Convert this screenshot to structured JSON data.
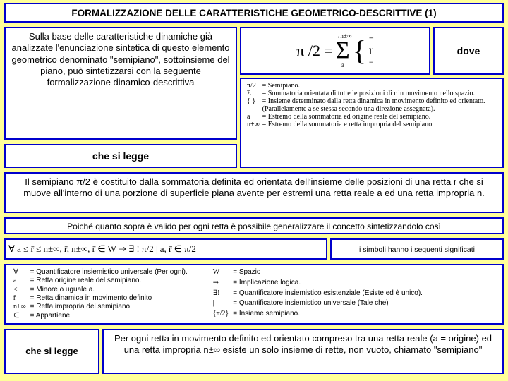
{
  "colors": {
    "border": "#0000cc",
    "bg_page": "#ffff99",
    "bg_box": "#ffffff"
  },
  "title": "FORMALIZZAZIONE DELLE CARATTERISTICHE GEOMETRICO-DESCRITTIVE (1)",
  "intro": "Sulla base delle caratteristiche dinamiche già analizzate l'enunciazione sintetica di questo elemento geometrico denominato \"semipiano\", sottoinsieme del piano, può sintetizzarsi con la seguente formalizzazione dinamico-descrittiva",
  "formula": {
    "left": "π /2 =",
    "sum_top": "→n±∞",
    "sum_bot": "a",
    "brace_top": "=",
    "r": "r",
    "brace_bot": "−"
  },
  "dove": "dove",
  "defs1": [
    {
      "s": "π/2",
      "t": "= Semipiano."
    },
    {
      "s": "Σ",
      "t": "= Sommatoria orientata di tutte le posizioni di r in movimento nello spazio."
    },
    {
      "s": "{ }",
      "t": "= Insieme determinato dalla retta dinamica in movimento definito ed orientato. (Parallelamente a se stessa secondo una direzione assegnata)."
    },
    {
      "s": "a",
      "t": "= Estremo della sommatoria ed origine reale del semipiano."
    },
    {
      "s": "n±∞",
      "t": "= Estremo della sommatoria e retta impropria del semipiano"
    }
  ],
  "chelegge": "che si legge",
  "para1": "Il semipiano π/2 è costituito dalla sommatoria definita ed orientata dell'insieme delle posizioni di una retta r che si muove all'interno di una porzione di superficie piana avente per estremi una retta reale a ed una retta impropria n.",
  "para2": "Poiché quanto sopra è valido per ogni retta è possibile generalizzare il concetto sintetizzandolo così",
  "symrow": "∀ a ≤ r̄ ≤ n±∞, r̄, n±∞, r̄ ∈ W ⇒ ∃ ! π/2 | a, r̄ ∈ π/2",
  "symmean": "i simboli hanno i seguenti significati",
  "defs2_left": [
    {
      "s": "∀",
      "t": "= Quantificatore insiemistico universale (Per ogni)."
    },
    {
      "s": "a",
      "t": "= Retta origine reale del semipiano."
    },
    {
      "s": "≤",
      "t": "= Minore o uguale a."
    },
    {
      "s": "r̄",
      "t": "= Retta dinamica in movimento definito"
    },
    {
      "s": "n±∞",
      "t": "= Retta impropria del semipiano."
    },
    {
      "s": "∈",
      "t": "= Appartiene"
    }
  ],
  "defs2_right": [
    {
      "s": "W",
      "t": "= Spazio"
    },
    {
      "s": "⇒",
      "t": "= Implicazione logica."
    },
    {
      "s": "∃!",
      "t": "= Quantificatore insiemistico esistenziale (Esiste ed è unico)."
    },
    {
      "s": "|",
      "t": "= Quantificatore insiemistico universale (Tale che)"
    },
    {
      "s": "{π/2}",
      "t": "= Insieme semipiano."
    }
  ],
  "para3": "Per ogni retta in movimento definito ed orientato compreso tra una retta reale (a = origine) ed una retta impropria n±∞ esiste un solo insieme di rette, non vuoto, chiamato \"semipiano\""
}
